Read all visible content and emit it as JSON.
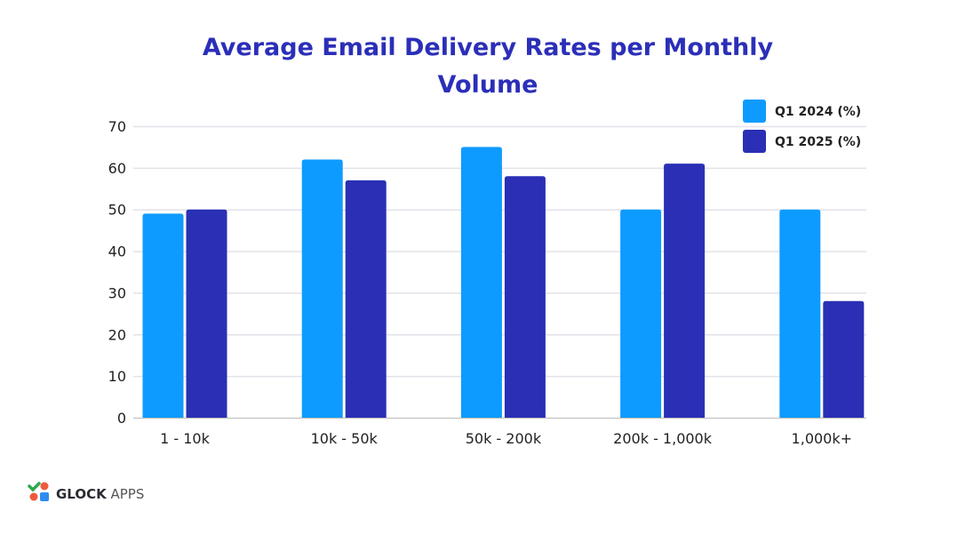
{
  "chart_data": {
    "type": "bar",
    "title_lines": [
      "Average Email Delivery Rates per Monthly",
      "Volume"
    ],
    "categories": [
      "1 - 10k",
      "10k - 50k",
      "50k - 200k",
      "200k - 1,000k",
      "1,000k+"
    ],
    "series": [
      {
        "name": "Q1 2024 (%)",
        "color": "#0e9bff",
        "values": [
          49,
          62,
          65,
          50,
          50
        ]
      },
      {
        "name": "Q1 2025 (%)",
        "color": "#2a2fb5",
        "values": [
          50,
          57,
          58,
          61,
          28
        ]
      }
    ],
    "y_ticks": [
      "0",
      "10",
      "20",
      "30",
      "40",
      "50",
      "60",
      "70"
    ],
    "ylim": [
      0,
      70
    ],
    "grid": true,
    "legend_position": "top-right"
  },
  "logo": {
    "bold": "GLOCK",
    "light": " APPS"
  }
}
